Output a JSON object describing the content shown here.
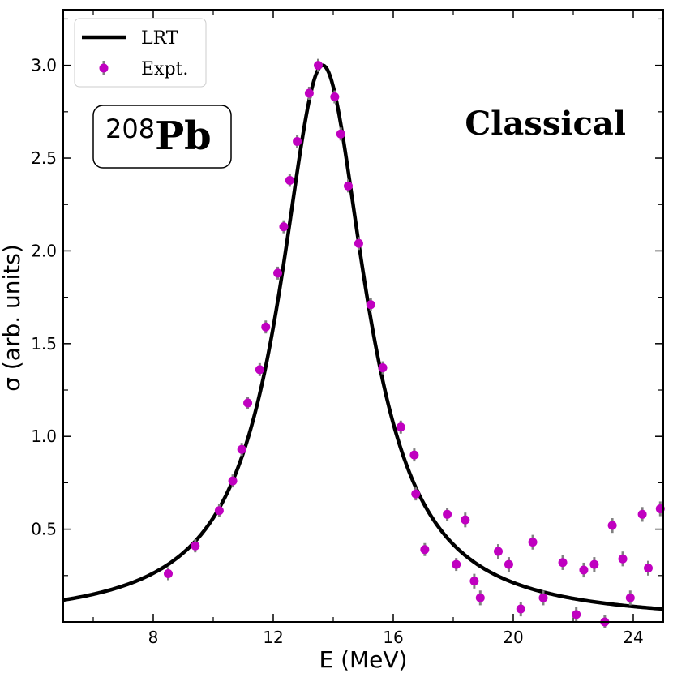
{
  "chart_data": {
    "type": "line",
    "title": "",
    "xlabel": "E (MeV)",
    "ylabel": "σ (arb. units)",
    "xlim": [
      5.0,
      25.0
    ],
    "ylim": [
      0.0,
      3.3
    ],
    "x_ticks": [
      8,
      12,
      16,
      20,
      24
    ],
    "x_tick_labels": [
      "8",
      "12",
      "16",
      "20",
      "24"
    ],
    "x_minor_ticks": [
      6,
      10,
      14,
      18,
      22
    ],
    "y_ticks": [
      0.5,
      1.0,
      1.5,
      2.0,
      2.5,
      3.0
    ],
    "y_tick_labels": [
      "0.5",
      "1.0",
      "1.5",
      "2.0",
      "2.5",
      "3.0"
    ],
    "y_minor_ticks": [
      0.25,
      0.75,
      1.25,
      1.75,
      2.25,
      2.75,
      3.25
    ],
    "grid": false,
    "legend_position": "top-left",
    "annotations": {
      "nucleus_mass": "208",
      "nucleus_symbol": "Pb",
      "model_label": "Classical"
    },
    "series": [
      {
        "name": "LRT",
        "kind": "line",
        "color": "#000000",
        "model": "lorentzian",
        "params": {
          "E0": 13.65,
          "Gamma": 3.5,
          "peak": 3.0
        },
        "x_range": [
          5.0,
          25.0
        ]
      },
      {
        "name": "Expt.",
        "kind": "scatter-errorbar",
        "marker_color": "#c000c0",
        "error_color": "#808080",
        "x": [
          8.5,
          9.4,
          10.2,
          10.65,
          10.95,
          11.15,
          11.55,
          11.75,
          12.15,
          12.35,
          12.55,
          12.8,
          13.2,
          13.5,
          14.05,
          14.25,
          14.5,
          14.85,
          15.25,
          15.65,
          16.25,
          16.7,
          16.75,
          17.05,
          17.8,
          18.1,
          18.4,
          18.7,
          18.9,
          19.5,
          19.85,
          20.25,
          20.65,
          21.0,
          21.65,
          22.1,
          22.35,
          22.7,
          23.05,
          23.3,
          23.65,
          23.9,
          24.3,
          24.5,
          24.9
        ],
        "y": [
          0.26,
          0.41,
          0.6,
          0.76,
          0.93,
          1.18,
          1.36,
          1.59,
          1.88,
          2.13,
          2.38,
          2.59,
          2.85,
          3.0,
          2.83,
          2.63,
          2.35,
          2.04,
          1.71,
          1.37,
          1.05,
          0.9,
          0.69,
          0.39,
          0.58,
          0.31,
          0.55,
          0.22,
          0.13,
          0.38,
          0.31,
          0.07,
          0.43,
          0.13,
          0.32,
          0.04,
          0.28,
          0.31,
          0.0,
          0.52,
          0.34,
          0.13,
          0.58,
          0.29,
          0.61
        ],
        "err": [
          0.01,
          0.01,
          0.01,
          0.01,
          0.01,
          0.01,
          0.01,
          0.01,
          0.01,
          0.01,
          0.01,
          0.01,
          0.01,
          0.01,
          0.02,
          0.02,
          0.03,
          0.02,
          0.02,
          0.02,
          0.02,
          0.02,
          0.03,
          0.03,
          0.03,
          0.03,
          0.04,
          0.04,
          0.04,
          0.04,
          0.04,
          0.04,
          0.04,
          0.04,
          0.04,
          0.04,
          0.04,
          0.04,
          0.04,
          0.04,
          0.04,
          0.04,
          0.04,
          0.04,
          0.04
        ]
      }
    ]
  }
}
